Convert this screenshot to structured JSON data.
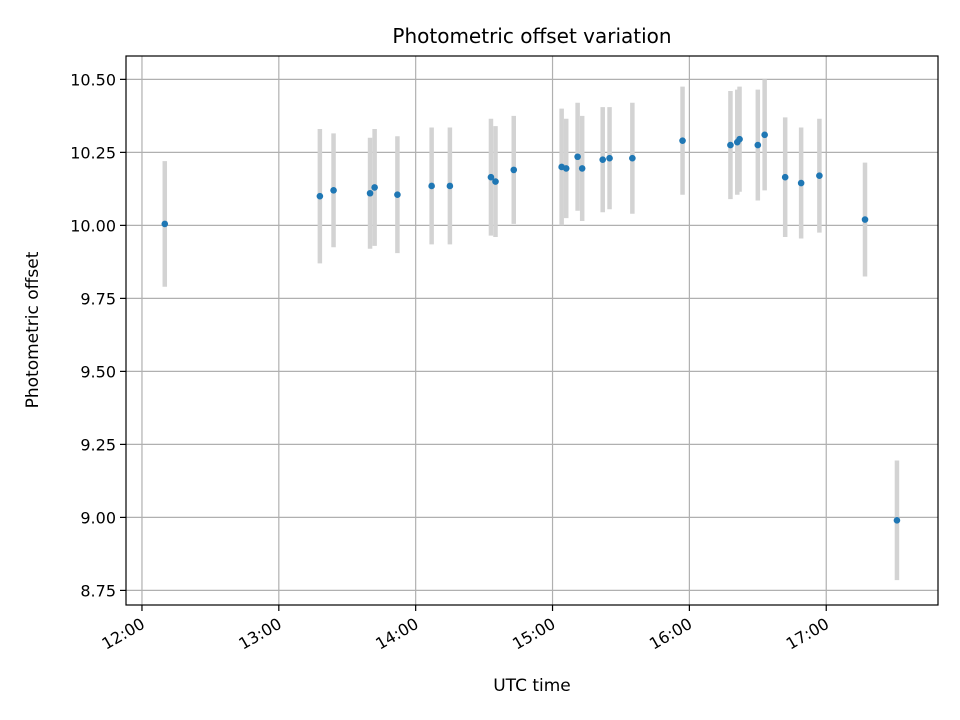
{
  "chart_data": {
    "type": "scatter",
    "title": "Photometric offset variation",
    "xlabel": "UTC time",
    "ylabel": "Photometric offset",
    "xlim": [
      "11:53",
      "17:49"
    ],
    "ylim": [
      8.7,
      10.58
    ],
    "x_ticks": [
      "12:00",
      "13:00",
      "14:00",
      "15:00",
      "16:00",
      "17:00"
    ],
    "y_ticks": [
      "8.75",
      "9.00",
      "9.25",
      "9.50",
      "9.75",
      "10.00",
      "10.25",
      "10.50"
    ],
    "grid": true,
    "colors": {
      "points": "#1f77b4",
      "error_bars": "#d3d3d3",
      "grid": "#b0b0b0"
    },
    "series": [
      {
        "points": [
          {
            "x": "12:10",
            "y": 10.005,
            "err": 0.215
          },
          {
            "x": "13:18",
            "y": 10.1,
            "err": 0.23
          },
          {
            "x": "13:24",
            "y": 10.12,
            "err": 0.195
          },
          {
            "x": "13:40",
            "y": 10.11,
            "err": 0.19
          },
          {
            "x": "13:42",
            "y": 10.13,
            "err": 0.2
          },
          {
            "x": "13:52",
            "y": 10.105,
            "err": 0.2
          },
          {
            "x": "14:07",
            "y": 10.135,
            "err": 0.2
          },
          {
            "x": "14:15",
            "y": 10.135,
            "err": 0.2
          },
          {
            "x": "14:33",
            "y": 10.165,
            "err": 0.2
          },
          {
            "x": "14:35",
            "y": 10.15,
            "err": 0.19
          },
          {
            "x": "14:43",
            "y": 10.19,
            "err": 0.185
          },
          {
            "x": "15:04",
            "y": 10.2,
            "err": 0.2
          },
          {
            "x": "15:06",
            "y": 10.195,
            "err": 0.17
          },
          {
            "x": "15:11",
            "y": 10.235,
            "err": 0.185
          },
          {
            "x": "15:13",
            "y": 10.195,
            "err": 0.18
          },
          {
            "x": "15:22",
            "y": 10.225,
            "err": 0.18
          },
          {
            "x": "15:25",
            "y": 10.23,
            "err": 0.175
          },
          {
            "x": "15:35",
            "y": 10.23,
            "err": 0.19
          },
          {
            "x": "15:57",
            "y": 10.29,
            "err": 0.185
          },
          {
            "x": "16:18",
            "y": 10.275,
            "err": 0.185
          },
          {
            "x": "16:21",
            "y": 10.285,
            "err": 0.18
          },
          {
            "x": "16:22",
            "y": 10.295,
            "err": 0.18
          },
          {
            "x": "16:30",
            "y": 10.275,
            "err": 0.19
          },
          {
            "x": "16:33",
            "y": 10.31,
            "err": 0.19
          },
          {
            "x": "16:42",
            "y": 10.165,
            "err": 0.205
          },
          {
            "x": "16:49",
            "y": 10.145,
            "err": 0.19
          },
          {
            "x": "16:57",
            "y": 10.17,
            "err": 0.195
          },
          {
            "x": "17:17",
            "y": 10.02,
            "err": 0.195
          },
          {
            "x": "17:31",
            "y": 8.99,
            "err": 0.205
          }
        ]
      }
    ]
  }
}
